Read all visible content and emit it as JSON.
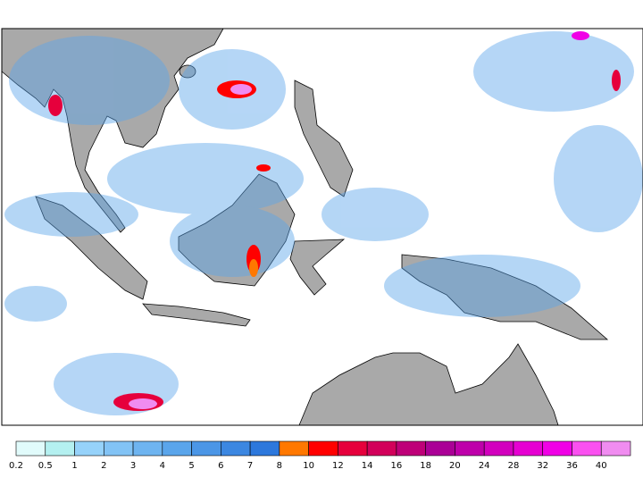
{
  "colorbar": {
    "levels": [
      0.2,
      0.5,
      1,
      2,
      3,
      4,
      5,
      6,
      7,
      8,
      10,
      12,
      14,
      16,
      18,
      20,
      24,
      28,
      32,
      36,
      40
    ],
    "colors": [
      "#e1fbfb",
      "#b4f0f0",
      "#96d2fa",
      "#82c3f5",
      "#6eb4f0",
      "#5aa5eb",
      "#4b96e6",
      "#3c87e1",
      "#2d78dc",
      "#ff7800",
      "#ff0000",
      "#e6003c",
      "#d2005a",
      "#be0078",
      "#aa0096",
      "#be00aa",
      "#d200be",
      "#e600d2",
      "#f000e6",
      "#fa50f0",
      "#f08cf0"
    ]
  }
}
